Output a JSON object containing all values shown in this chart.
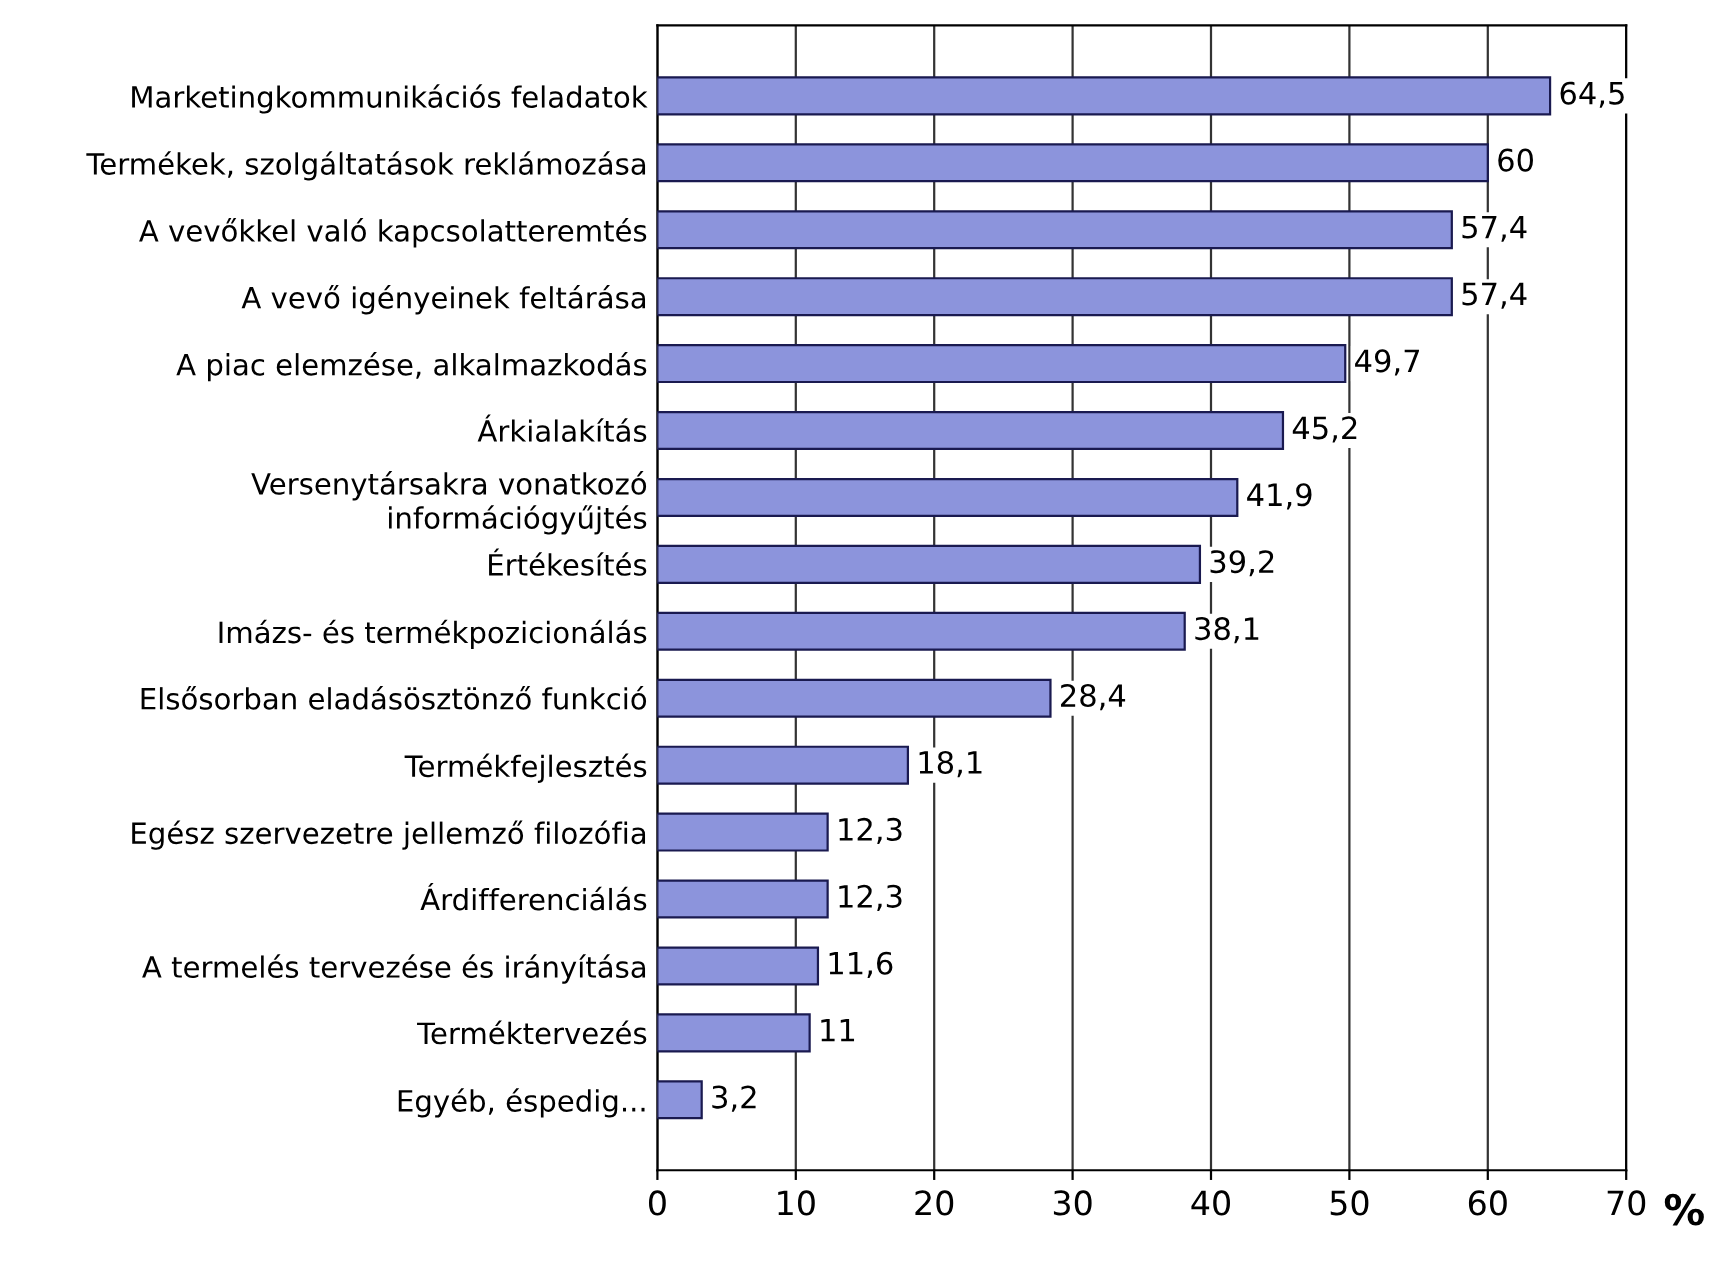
{
  "chart_data": {
    "type": "bar",
    "orientation": "horizontal",
    "xlabel": "%",
    "categories": [
      "Marketingkommunikációs feladatok",
      "Termékek, szolgáltatások reklámozása",
      "A vevőkkel való kapcsolatteremtés",
      "A vevő igényeinek feltárása",
      "A piac elemzése, alkalmazkodás",
      "Árkialakítás",
      "Versenytársakra vonatkozó\ninformációgyűjtés",
      "Értékesítés",
      "Imázs- és termékpozicionálás",
      "Elsősorban eladásösztönző funkció",
      "Termékfejlesztés",
      "Egész szervezetre jellemző filozófia",
      "Árdifferenciálás",
      "A termelés tervezése és irányítása",
      "Terméktervezés",
      "Egyéb, éspedig..."
    ],
    "values": [
      64.5,
      60,
      57.4,
      57.4,
      49.7,
      45.2,
      41.9,
      39.2,
      38.1,
      28.4,
      18.1,
      12.3,
      12.3,
      11.6,
      11,
      3.2
    ],
    "value_labels": [
      "64,5",
      "60",
      "57,4",
      "57,4",
      "49,7",
      "45,2",
      "41,9",
      "39,2",
      "38,1",
      "28,4",
      "18,1",
      "12,3",
      "12,3",
      "11,6",
      "11",
      "3,2"
    ],
    "color": "#8c94dc",
    "xlim": [
      0,
      70
    ],
    "xticks": [
      0,
      10,
      20,
      30,
      40,
      50,
      60,
      70
    ],
    "grid": "x"
  }
}
